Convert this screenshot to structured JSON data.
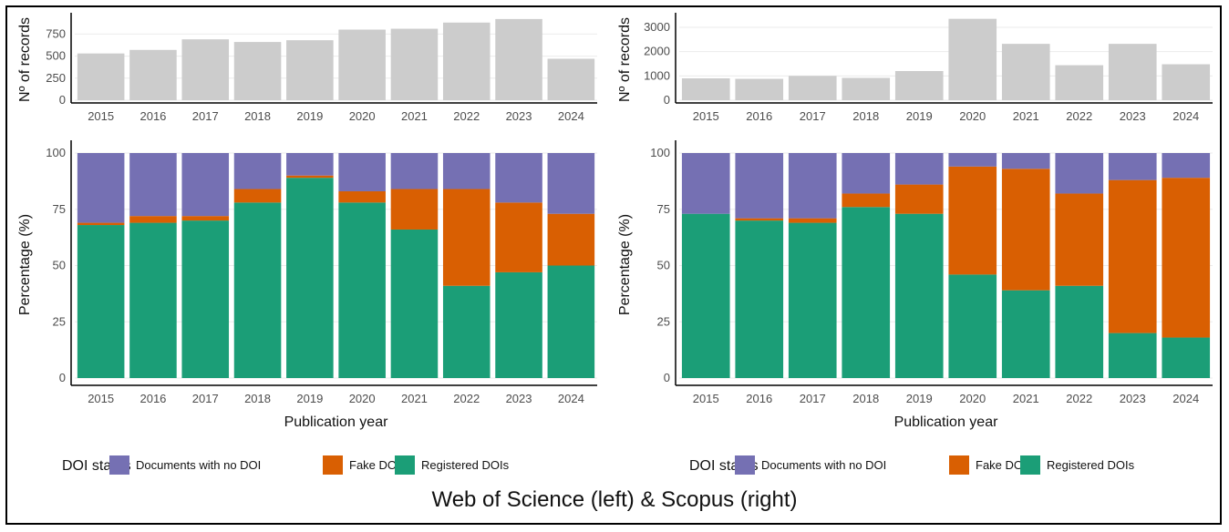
{
  "caption": "Web of Science (left) & Scopus (right)",
  "colors": {
    "records_bar": "#cccccc",
    "no_doi": "#7570b3",
    "fake": "#d95f02",
    "registered": "#1b9e77",
    "grid": "#ebebeb",
    "axis": "#000000",
    "text": "#4d4d4d"
  },
  "chart_data": [
    {
      "panel": "Web of Science",
      "type": "bar",
      "ylabel": "Nº of records",
      "categories": [
        "2015",
        "2016",
        "2017",
        "2018",
        "2019",
        "2020",
        "2021",
        "2022",
        "2023",
        "2024"
      ],
      "values": [
        530,
        570,
        690,
        660,
        680,
        800,
        810,
        880,
        920,
        470
      ],
      "yticks": [
        0,
        250,
        500,
        750
      ],
      "ylim": [
        0,
        950
      ],
      "grid": true
    },
    {
      "panel": "Web of Science",
      "type": "bar",
      "stacked": true,
      "xlabel": "Publication year",
      "ylabel": "Percentage (%)",
      "categories": [
        "2015",
        "2016",
        "2017",
        "2018",
        "2019",
        "2020",
        "2021",
        "2022",
        "2023",
        "2024"
      ],
      "series": [
        {
          "name": "Registered DOIs",
          "color_key": "registered",
          "values": [
            68,
            69,
            70,
            78,
            89,
            78,
            66,
            41,
            47,
            50
          ]
        },
        {
          "name": "Fake DOIs",
          "color_key": "fake",
          "values": [
            1,
            3,
            2,
            6,
            1,
            5,
            18,
            43,
            31,
            23
          ]
        },
        {
          "name": "Documents with no DOI",
          "color_key": "no_doi",
          "values": [
            31,
            28,
            28,
            16,
            10,
            17,
            16,
            16,
            22,
            27
          ]
        }
      ],
      "yticks": [
        0,
        25,
        50,
        75,
        100
      ],
      "ylim": [
        0,
        100
      ],
      "grid": true
    },
    {
      "panel": "Scopus",
      "type": "bar",
      "ylabel": "Nº of records",
      "categories": [
        "2015",
        "2016",
        "2017",
        "2018",
        "2019",
        "2020",
        "2021",
        "2022",
        "2023",
        "2024"
      ],
      "values": [
        900,
        880,
        1000,
        920,
        1200,
        3350,
        2320,
        1440,
        2320,
        1480
      ],
      "yticks": [
        0,
        1000,
        2000,
        3000
      ],
      "ylim": [
        0,
        3450
      ],
      "grid": true
    },
    {
      "panel": "Scopus",
      "type": "bar",
      "stacked": true,
      "xlabel": "Publication year",
      "ylabel": "Percentage (%)",
      "categories": [
        "2015",
        "2016",
        "2017",
        "2018",
        "2019",
        "2020",
        "2021",
        "2022",
        "2023",
        "2024"
      ],
      "series": [
        {
          "name": "Registered DOIs",
          "color_key": "registered",
          "values": [
            73,
            70,
            69,
            76,
            73,
            46,
            39,
            41,
            20,
            18
          ]
        },
        {
          "name": "Fake DOIs",
          "color_key": "fake",
          "values": [
            0,
            1,
            2,
            6,
            13,
            48,
            54,
            41,
            68,
            71
          ]
        },
        {
          "name": "Documents with no DOI",
          "color_key": "no_doi",
          "values": [
            27,
            29,
            29,
            18,
            14,
            6,
            7,
            18,
            12,
            11
          ]
        }
      ],
      "yticks": [
        0,
        25,
        50,
        75,
        100
      ],
      "ylim": [
        0,
        100
      ],
      "grid": true
    }
  ],
  "legend": {
    "title": "DOI status",
    "items": [
      {
        "label": "Documents with no DOI",
        "color_key": "no_doi"
      },
      {
        "label": "Fake DOIs",
        "color_key": "fake"
      },
      {
        "label": "Registered DOIs",
        "color_key": "registered"
      }
    ]
  }
}
